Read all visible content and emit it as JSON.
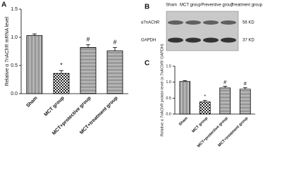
{
  "chart_data": [
    {
      "type": "bar",
      "label": "A",
      "y_label": "Relative α 7nAChR mRNA level",
      "categories": [
        "Sham",
        "MCT group",
        "MCT+protective group",
        "MCT+treatment group"
      ],
      "values": [
        1.03,
        0.36,
        0.82,
        0.76
      ],
      "errors": [
        0.03,
        0.05,
        0.05,
        0.06
      ],
      "annotations": [
        null,
        "*",
        "#",
        "#"
      ],
      "patterns": [
        "vertical-lines",
        "checker",
        "horizontal-lines",
        "horizontal-lines"
      ],
      "ylim": [
        0,
        1.5
      ],
      "yticks": [
        {
          "value": 0,
          "label": "0.0"
        },
        {
          "value": 0.5,
          "label": "0.5"
        },
        {
          "value": 1,
          "label": "1.0"
        },
        {
          "value": 1.5,
          "label": "1.5"
        }
      ]
    },
    {
      "type": "bar",
      "label": "C",
      "y_label": "Relative α 7nAChR protein level (α 7nAChR/ GAPDH)",
      "categories": [
        "Sham",
        "MCT group",
        "MCT+protective group",
        "MCT+treatment group"
      ],
      "values": [
        1.02,
        0.38,
        0.82,
        0.78
      ],
      "errors": [
        0.03,
        0.05,
        0.05,
        0.05
      ],
      "annotations": [
        null,
        "*",
        "#",
        "#"
      ],
      "patterns": [
        "vertical-lines",
        "checker",
        "horizontal-lines",
        "horizontal-lines"
      ],
      "ylim": [
        0,
        1.5
      ],
      "yticks": [
        {
          "value": 0,
          "label": "0.0"
        },
        {
          "value": 0.5,
          "label": "0.5"
        },
        {
          "value": 1,
          "label": "1.0"
        },
        {
          "value": 1.5,
          "label": "1.5"
        }
      ]
    }
  ],
  "blot": {
    "label": "B",
    "columns": [
      "Sham",
      "MCT group",
      "Preventive group",
      "Treatment group"
    ],
    "rows": [
      {
        "name": "α7nAChR",
        "size": "56 KD"
      },
      {
        "name": "GAPDH",
        "size": "37 KD"
      }
    ]
  }
}
